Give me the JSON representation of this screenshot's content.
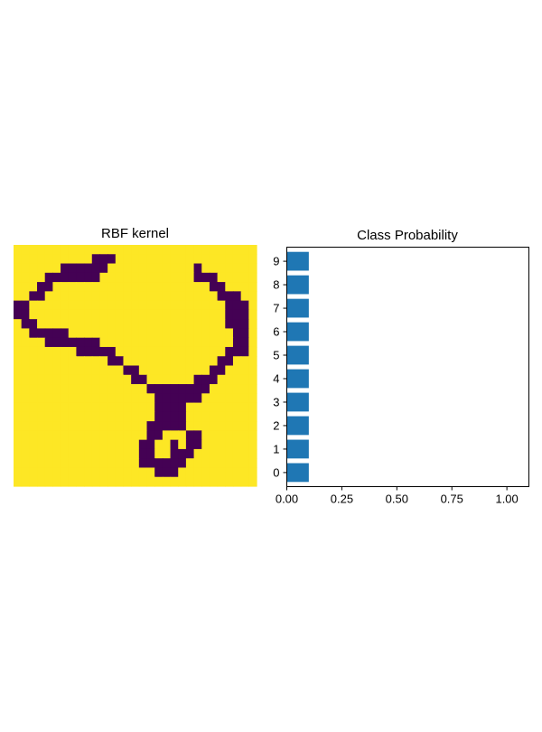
{
  "chart_data": [
    {
      "type": "heatmap",
      "title": "RBF kernel",
      "colormap": "viridis",
      "colors": {
        "low": "#440154",
        "high": "#fde725"
      },
      "axes_visible": false,
      "grid": [
        "1111111111111111111111111111111111111111111111111",
        "1111111111111111111111111111111111111111111111111",
        "1111111111111111111111111111111111111111111111111",
        "1111111111111111111111111111111111111111111111111",
        "1111111111111111111111111111111111111111111111111",
        "1111111111111111111111111111111111111111111111111",
        "1111111111111111111111111111111111111111111111111",
        "1111111111111111111111111111111111111111111111111",
        "1111111111111111111111111111111111111111111111111",
        "1111111111111111111111111111111111111111111111111"
      ],
      "mask_rows": [
        "11111111110011111111111111111111",
        "11111111000011111111111111111111",
        "11111100000111111111111111111111",
        "11110001111111111111111111111111",
        "11100111111111111111111111111111",
        "11011111111111111111111111111111",
        "11011111111111111111111111111111",
        "11001111111111111111111111111111",
        "11100000000111111111111111111111",
        "11111110000011111111111111111111",
        "11111111111000011111111111111111",
        "11111111111111100111111111111111",
        "11111111111111110011111111111111",
        "11111111111111111001111111111111",
        "11111111111111111001111111111111",
        "11111111111111111101111111111111",
        "11111111111111111100111111111111",
        "11111111111111111101011111111111",
        "11111111111111111101101111111111",
        "11111111111111111111111111111111"
      ],
      "image_rows": [
        "1111111111000111111111111111111",
        "1111110000001111111111101111111",
        "1111000000011111111111100011111",
        "1110011111111111111111111001111",
        "1100111111111111111111111100011",
        "0011111111111111111111111110001",
        "0011111111111111111111111110001",
        "1001111111111111111111111110001",
        "1100000111111111111111111111001",
        "1111000000011111111111111111001",
        "1111111100000111111111111110001",
        "1111111111110011111111111100111",
        "1111111111111100111111111001111",
        "1111111111111110011111100011111",
        "1111111111111111100000000111111",
        "1111111111111111110000001111111",
        "1111111111111111110000111111111",
        "1111111111111111110000111111111",
        "1111111111111111100000111111111",
        "1111111111111111100111001111111",
        "1111111111111111001101001111111",
        "1111111111111111001100011111111",
        "1111111111111111000000111111111",
        "1111111111111111110001111111111",
        "1111111111111111111111111111111",
        "1111111111111111111111111111111"
      ],
      "pixels": [
        "1111111111111111111111111111111",
        "1111111111100111111111111111111",
        "1111111000001111111111101111111",
        "1111100000011111111111100011111",
        "1110011111111111111111111001111",
        "1100111111111111111111111100011",
        "0011111111111111111111111110001",
        "0011111111111111111111111110001",
        "1001111111111111111111111110001",
        "1100000111111111111111111111001",
        "1111000000011111111111111111001",
        "1111111100000111111111111110001",
        "1111111111110011111111111100111",
        "1111111111111100111111111001111",
        "1111111111111110011111100011111",
        "1111111111111111100000000111111",
        "1111111111111111110000001111111",
        "1111111111111111110000111111111",
        "1111111111111111110000111111111",
        "1111111111111111100000111111111",
        "1111111111111111100111001111111",
        "1111111111111111001101001111111",
        "1111111111111111001100011111111",
        "1111111111111111000000111111111",
        "1111111111111111110001111111111",
        "1111111111111111111111111111111",
        "1111111111111111111111111111111"
      ],
      "digit": [
        "1111111111111111111111111111111",
        "1111111111000111111111111111111",
        "1111110000001111111111101111111",
        "1111000000011111111111100011111",
        "1110011111111111111111111001111",
        "1100111111111111111111111100011",
        "0011111111111111111111111110001",
        "0011111111111111111111111110001",
        "1001111111111111111111111110001",
        "1100000111111111111111111111001",
        "1111000000011111111111111111001",
        "1111111100000111111111111110001",
        "1111111111110011111111111100111",
        "1111111111111100111111111001111",
        "1111111111111110011111100011111",
        "1111111111111111100000000111111",
        "1111111111111111110000001111111",
        "1111111111111111110000111111111",
        "1111111111111111110000111111111",
        "1111111111111111100000111111111",
        "1111111111111111100111001111111",
        "1111111111111111001101001111111",
        "1111111111111111001100011111111",
        "1111111111111111000000111111111",
        "1111111111111111110001111111111",
        "1111111111111111111111111111111"
      ]
    },
    {
      "type": "bar",
      "orientation": "horizontal",
      "title": "Class Probability",
      "categories": [
        "0",
        "1",
        "2",
        "3",
        "4",
        "5",
        "6",
        "7",
        "8",
        "9"
      ],
      "values": [
        0.1,
        0.1,
        0.1,
        0.1,
        0.1,
        0.1,
        0.1,
        0.1,
        0.1,
        0.1
      ],
      "xlim": [
        0,
        1.1
      ],
      "xticks": [
        "0.00",
        "0.25",
        "0.50",
        "0.75",
        "1.00"
      ],
      "xtick_values": [
        0,
        0.25,
        0.5,
        0.75,
        1.0
      ],
      "bar_color": "#1f77b4",
      "grid": false
    }
  ]
}
